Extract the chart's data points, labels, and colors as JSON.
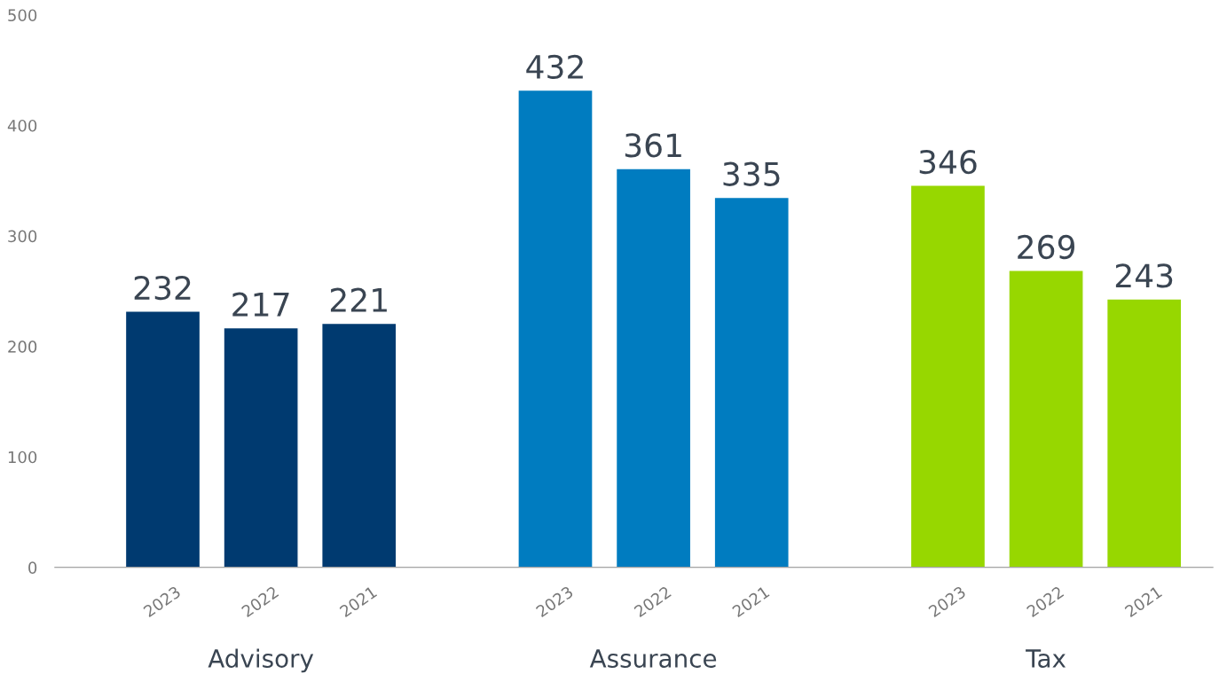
{
  "chart_data": {
    "type": "bar",
    "categories": [
      "2023",
      "2022",
      "2021",
      null,
      "2023",
      "2022",
      "2021",
      null,
      "2023",
      "2022",
      "2021"
    ],
    "series": [
      {
        "color": "#003a70",
        "values": [
          232,
          217,
          221,
          null,
          null,
          null,
          null,
          null,
          null,
          null,
          null
        ]
      },
      {
        "color": "#007cc0",
        "values": [
          null,
          null,
          null,
          null,
          432,
          361,
          335,
          null,
          null,
          null,
          null
        ]
      },
      {
        "color": "#97d700",
        "values": [
          null,
          null,
          null,
          null,
          null,
          null,
          null,
          null,
          346,
          269,
          243
        ]
      }
    ],
    "annotations": [
      "Advisory",
      "Assurance",
      "Tax"
    ],
    "ylim": [
      0,
      500
    ],
    "yticks": [
      0,
      100,
      200,
      300,
      400,
      500
    ],
    "data_labels": true,
    "grid": false,
    "legend": false
  }
}
